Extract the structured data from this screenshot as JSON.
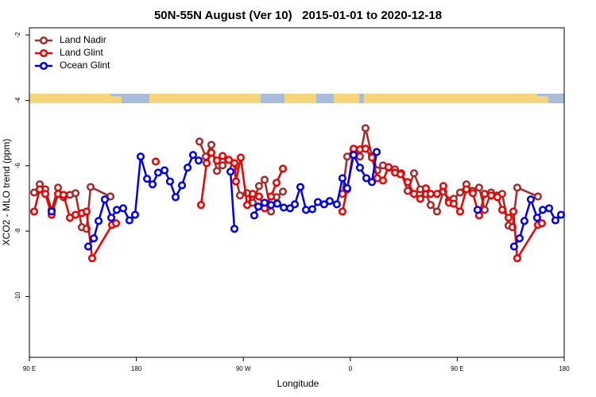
{
  "chart_data": {
    "type": "line",
    "title": "50N-55N August (Ver 10)   2015-01-01 to 2020-12-18",
    "xlabel": "Longitude",
    "ylabel": "XCO2 - MLO trend (ppm)",
    "xlim": [
      90,
      540
    ],
    "ylim": [
      -11.86,
      -1.78
    ],
    "xticks": [
      {
        "value": 90,
        "label": "90 E"
      },
      {
        "value": 180,
        "label": "180"
      },
      {
        "value": 270,
        "label": "90 W"
      },
      {
        "value": 360,
        "label": "0"
      },
      {
        "value": 450,
        "label": "90 E"
      },
      {
        "value": 540,
        "label": "180"
      }
    ],
    "yticks": [
      -2,
      -4,
      -6,
      -8,
      -10
    ],
    "legend": "top-left",
    "series": [
      {
        "name": "Land Nadir",
        "color": "#a52a2a",
        "x": [
          94.0,
          98.7,
          103.4,
          108.7,
          114.1,
          118.7,
          124.1,
          128.8,
          134.1,
          138.1,
          141.5,
          158.2,
          null,
          233.1,
          238.4,
          243.1,
          247.8,
          252.5,
          257.2,
          261.8,
          267.2,
          273.2,
          277.9,
          283.2,
          287.9,
          293.3,
          297.9,
          303.3,
          null,
          353.4,
          357.4,
          362.8,
          368.1,
          372.8,
          378.2,
          382.8,
          387.5,
          392.2,
          397.6,
          402.9,
          408.3,
          413.6,
          418.9,
          423.6,
          427.6,
          433.0,
          438.3,
          443.0,
          447.0,
          452.4,
          457.7,
          463.1,
          468.4,
          473.1,
          478.5,
          483.8,
          487.8,
          493.2,
          496.5,
          500.5,
          517.9
        ],
        "values": [
          -6.82,
          -6.57,
          -6.72,
          -7.35,
          -6.67,
          -6.96,
          -6.89,
          -6.84,
          -7.88,
          -7.93,
          -6.65,
          -6.94,
          null,
          -5.26,
          -5.72,
          -5.36,
          -6.16,
          -5.99,
          -5.82,
          -6.06,
          -6.91,
          -6.84,
          -7.13,
          -6.62,
          -6.43,
          -7.4,
          -6.96,
          -6.79,
          null,
          -6.86,
          -5.72,
          -5.5,
          -5.72,
          -4.85,
          -5.7,
          -6.14,
          -5.99,
          -6.06,
          -6.11,
          -6.23,
          -6.77,
          -6.23,
          -6.72,
          -6.86,
          -7.2,
          -7.4,
          -6.79,
          -7.06,
          -7.01,
          -6.82,
          -6.57,
          -6.77,
          -6.67,
          -7.35,
          -6.82,
          -6.91,
          -6.86,
          -7.83,
          -7.88,
          -6.67,
          -6.94
        ]
      },
      {
        "name": "Land Glint",
        "color": "#ee0000",
        "x": [
          94.0,
          98.7,
          103.4,
          108.7,
          114.1,
          118.7,
          124.1,
          128.8,
          134.1,
          138.1,
          142.8,
          159.5,
          162.9,
          null,
          196.3,
          null,
          234.4,
          239.1,
          243.1,
          247.8,
          252.5,
          257.8,
          262.5,
          263.8,
          267.8,
          273.2,
          277.9,
          283.2,
          287.9,
          293.3,
          297.9,
          303.3,
          null,
          353.4,
          357.4,
          362.8,
          368.1,
          372.8,
          378.2,
          382.8,
          387.5,
          392.2,
          397.6,
          402.2,
          408.3,
          413.6,
          418.9,
          423.6,
          427.6,
          433.0,
          438.3,
          443.0,
          447.0,
          452.4,
          457.7,
          463.1,
          468.4,
          473.1,
          478.5,
          483.8,
          487.8,
          493.2,
          497.2,
          500.5,
          517.9,
          521.2
        ],
        "values": [
          -7.4,
          -6.72,
          -6.86,
          -7.5,
          -6.86,
          -6.89,
          -7.59,
          -7.5,
          -7.45,
          -7.4,
          -8.83,
          -7.81,
          -7.76,
          null,
          -5.87,
          null,
          -7.2,
          -5.92,
          -5.6,
          -5.84,
          -5.7,
          -5.82,
          -5.92,
          -6.48,
          -5.75,
          -7.2,
          -6.86,
          -6.94,
          -7.3,
          -6.94,
          -6.52,
          -6.09,
          null,
          -7.4,
          -6.72,
          -5.48,
          -5.5,
          -5.48,
          -5.75,
          -6.38,
          -6.45,
          -6.04,
          -6.21,
          -6.26,
          -6.5,
          -6.86,
          -7.01,
          -6.69,
          -6.86,
          -6.86,
          -6.62,
          -7.13,
          -7.16,
          -7.4,
          -6.72,
          -6.84,
          -7.52,
          -6.86,
          -6.91,
          -6.96,
          -7.35,
          -7.59,
          -7.4,
          -8.83,
          -7.81,
          -7.76
        ]
      },
      {
        "name": "Ocean Glint",
        "color": "#0000ee",
        "x": [
          108.7,
          null,
          139.5,
          144.2,
          148.2,
          153.5,
          158.9,
          163.5,
          168.9,
          174.2,
          178.9,
          183.6,
          189.0,
          193.6,
          198.3,
          203.7,
          208.3,
          213.0,
          218.4,
          223.1,
          227.7,
          232.4,
          null,
          259.2,
          262.5,
          null,
          279.2,
          282.6,
          287.9,
          293.3,
          298.6,
          304.0,
          309.3,
          313.3,
          318.0,
          322.7,
          328.0,
          332.7,
          338.0,
          342.7,
          348.7,
          353.4,
          357.4,
          362.8,
          368.1,
          373.5,
          378.2,
          382.2,
          null,
          467.1,
          null,
          497.8,
          502.5,
          506.5,
          511.9,
          517.2,
          521.9,
          527.3,
          532.6,
          537.3
        ],
        "values": [
          -7.4,
          null,
          -8.47,
          -8.22,
          -7.69,
          -7.03,
          -7.59,
          -7.35,
          -7.3,
          -7.67,
          -7.5,
          -5.72,
          -6.4,
          -6.57,
          -6.21,
          -6.14,
          -6.48,
          -6.96,
          -6.6,
          -6.06,
          -5.67,
          -5.84,
          null,
          -6.18,
          -7.93,
          null,
          -7.52,
          -7.25,
          -7.13,
          -7.2,
          -7.16,
          -7.28,
          -7.3,
          -7.18,
          -6.65,
          -7.35,
          -7.33,
          -7.11,
          -7.18,
          -7.08,
          -7.18,
          -6.38,
          -6.69,
          -5.67,
          -6.06,
          -6.38,
          -6.5,
          -5.58,
          null,
          -7.35,
          null,
          -8.47,
          -8.22,
          -7.69,
          -7.03,
          -7.59,
          -7.35,
          -7.3,
          -7.67,
          -7.5
        ]
      }
    ]
  }
}
